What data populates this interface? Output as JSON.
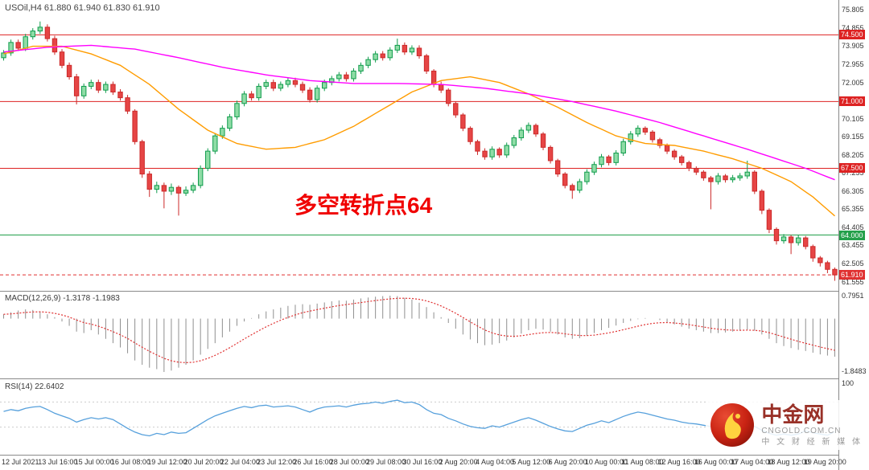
{
  "header": {
    "symbol_line": "USOil,H4 61.880 61.940 61.830 61.910"
  },
  "annotation": {
    "text": "多空转折点64",
    "color": "#f00000"
  },
  "price_axis": {
    "labels": [
      "75.805",
      "74.855",
      "73.905",
      "72.955",
      "72.005",
      "71.055",
      "70.105",
      "69.155",
      "68.205",
      "67.255",
      "66.305",
      "65.355",
      "64.405",
      "63.455",
      "62.505",
      "61.555"
    ]
  },
  "logo": {
    "title": "中金网",
    "domain": "CNGOLD.COM.CN",
    "tagline": "中 文 财 经 新 媒 体"
  },
  "chart_data": {
    "type": "candlestick",
    "symbol": "USOil",
    "timeframe": "H4",
    "price_range": [
      61.2,
      76.2
    ],
    "x_labels": [
      "12 Jul 2021",
      "13 Jul 16:00",
      "15 Jul 00:00",
      "16 Jul 08:00",
      "19 Jul 12:00",
      "20 Jul 20:00",
      "22 Jul 04:00",
      "23 Jul 12:00",
      "26 Jul 16:00",
      "28 Jul 00:00",
      "29 Jul 08:00",
      "30 Jul 16:00",
      "2 Aug 20:00",
      "4 Aug 04:00",
      "5 Aug 12:00",
      "6 Aug 20:00",
      "10 Aug 00:00",
      "11 Aug 08:00",
      "12 Aug 16:00",
      "16 Aug 00:00",
      "17 Aug 04:00",
      "18 Aug 12:00",
      "19 Aug 20:00"
    ],
    "colors": {
      "up_fill": "#8fdca6",
      "up_stroke": "#0f9c4c",
      "down_fill": "#e64545",
      "down_stroke": "#cc2a2a",
      "ma_fast": "#ff9c00",
      "ma_slow": "#ff00ff",
      "macd_bar": "#8f8f8f",
      "macd_signal": "#e03131",
      "rsi_line": "#56a0dc",
      "current_price": "#e03131"
    },
    "hlines": [
      {
        "value": 74.5,
        "label": "74.500",
        "color": "#dd2222"
      },
      {
        "value": 71.0,
        "label": "71.000",
        "color": "#dd2222"
      },
      {
        "value": 67.5,
        "label": "67.500",
        "color": "#dd2222"
      },
      {
        "value": 64.0,
        "label": "64.000",
        "color": "#23a04a"
      }
    ],
    "current_price": {
      "value": 61.91,
      "label": "61.910",
      "color": "#e03131"
    },
    "candles": [
      [
        73.3,
        73.7,
        73.15,
        73.55
      ],
      [
        73.55,
        74.25,
        73.4,
        74.1
      ],
      [
        74.1,
        74.25,
        73.65,
        73.8
      ],
      [
        73.8,
        74.55,
        73.65,
        74.4
      ],
      [
        74.4,
        74.85,
        74.25,
        74.7
      ],
      [
        74.7,
        75.2,
        74.55,
        74.9
      ],
      [
        74.9,
        75.05,
        74.15,
        74.3
      ],
      [
        74.3,
        74.45,
        73.45,
        73.6
      ],
      [
        73.6,
        73.75,
        72.75,
        72.9
      ],
      [
        72.9,
        73.05,
        72.15,
        72.3
      ],
      [
        72.3,
        72.45,
        70.85,
        71.3
      ],
      [
        71.3,
        71.95,
        71.15,
        71.8
      ],
      [
        71.8,
        72.15,
        71.65,
        72.0
      ],
      [
        72.0,
        72.15,
        71.45,
        71.6
      ],
      [
        71.6,
        72.05,
        71.45,
        71.9
      ],
      [
        71.9,
        72.05,
        71.35,
        71.5
      ],
      [
        71.5,
        71.65,
        71.05,
        71.2
      ],
      [
        71.2,
        71.35,
        70.35,
        70.5
      ],
      [
        70.5,
        70.6,
        68.75,
        68.9
      ],
      [
        68.9,
        69.0,
        67.0,
        67.2
      ],
      [
        67.2,
        67.35,
        66.0,
        66.4
      ],
      [
        66.4,
        66.8,
        66.2,
        66.6
      ],
      [
        66.6,
        66.75,
        65.4,
        66.3
      ],
      [
        66.3,
        66.7,
        66.1,
        66.5
      ],
      [
        66.5,
        66.6,
        65.02,
        66.2
      ],
      [
        66.2,
        66.55,
        66.05,
        66.35
      ],
      [
        66.35,
        66.75,
        66.2,
        66.6
      ],
      [
        66.6,
        67.65,
        66.45,
        67.5
      ],
      [
        67.5,
        68.55,
        67.35,
        68.4
      ],
      [
        68.4,
        69.35,
        68.25,
        69.2
      ],
      [
        69.2,
        69.75,
        69.05,
        69.6
      ],
      [
        69.6,
        70.35,
        69.45,
        70.2
      ],
      [
        70.2,
        71.05,
        70.05,
        70.9
      ],
      [
        70.9,
        71.55,
        70.75,
        71.4
      ],
      [
        71.4,
        71.55,
        71.05,
        71.2
      ],
      [
        71.2,
        71.95,
        71.05,
        71.8
      ],
      [
        71.8,
        72.15,
        71.65,
        72.0
      ],
      [
        72.0,
        72.15,
        71.55,
        71.7
      ],
      [
        71.7,
        72.05,
        71.55,
        71.9
      ],
      [
        71.9,
        72.25,
        71.75,
        72.1
      ],
      [
        72.1,
        72.25,
        71.75,
        71.9
      ],
      [
        71.9,
        72.05,
        71.45,
        71.6
      ],
      [
        71.6,
        71.75,
        70.95,
        71.1
      ],
      [
        71.1,
        71.85,
        70.95,
        71.7
      ],
      [
        71.7,
        72.15,
        71.55,
        72.0
      ],
      [
        72.0,
        72.35,
        71.85,
        72.2
      ],
      [
        72.2,
        72.55,
        72.05,
        72.4
      ],
      [
        72.4,
        72.55,
        72.05,
        72.2
      ],
      [
        72.2,
        72.75,
        72.05,
        72.6
      ],
      [
        72.6,
        73.05,
        72.45,
        72.9
      ],
      [
        72.9,
        73.35,
        72.75,
        73.2
      ],
      [
        73.2,
        73.65,
        73.05,
        73.5
      ],
      [
        73.5,
        73.65,
        73.15,
        73.3
      ],
      [
        73.3,
        73.85,
        73.15,
        73.7
      ],
      [
        73.7,
        74.3,
        73.55,
        73.95
      ],
      [
        73.95,
        74.1,
        73.45,
        73.6
      ],
      [
        73.6,
        73.95,
        73.45,
        73.8
      ],
      [
        73.8,
        73.95,
        73.25,
        73.4
      ],
      [
        73.4,
        73.5,
        72.45,
        72.6
      ],
      [
        72.6,
        72.7,
        71.75,
        71.9
      ],
      [
        71.9,
        72.05,
        71.45,
        71.6
      ],
      [
        71.6,
        71.7,
        70.75,
        70.9
      ],
      [
        70.9,
        71.0,
        70.15,
        70.3
      ],
      [
        70.3,
        70.4,
        69.45,
        69.6
      ],
      [
        69.6,
        69.7,
        68.75,
        68.9
      ],
      [
        68.9,
        69.0,
        68.2,
        68.4
      ],
      [
        68.4,
        68.55,
        67.95,
        68.1
      ],
      [
        68.1,
        68.65,
        67.95,
        68.5
      ],
      [
        68.5,
        68.6,
        68.05,
        68.2
      ],
      [
        68.2,
        68.85,
        68.05,
        68.7
      ],
      [
        68.7,
        69.25,
        68.55,
        69.1
      ],
      [
        69.1,
        69.65,
        68.95,
        69.5
      ],
      [
        69.5,
        69.9,
        69.35,
        69.75
      ],
      [
        69.75,
        69.85,
        69.15,
        69.3
      ],
      [
        69.3,
        69.4,
        68.45,
        68.6
      ],
      [
        68.6,
        68.7,
        67.75,
        67.9
      ],
      [
        67.9,
        68.0,
        67.05,
        67.2
      ],
      [
        67.2,
        67.3,
        66.45,
        66.6
      ],
      [
        66.6,
        66.7,
        65.9,
        66.35
      ],
      [
        66.35,
        66.95,
        66.2,
        66.8
      ],
      [
        66.8,
        67.45,
        66.65,
        67.3
      ],
      [
        67.3,
        67.85,
        67.15,
        67.7
      ],
      [
        67.7,
        68.25,
        67.55,
        68.1
      ],
      [
        68.1,
        68.2,
        67.65,
        67.8
      ],
      [
        67.8,
        68.45,
        67.65,
        68.3
      ],
      [
        68.3,
        69.05,
        68.15,
        68.9
      ],
      [
        68.9,
        69.45,
        68.75,
        69.3
      ],
      [
        69.3,
        69.75,
        69.15,
        69.6
      ],
      [
        69.6,
        69.7,
        69.25,
        69.4
      ],
      [
        69.4,
        69.5,
        68.85,
        69.0
      ],
      [
        69.0,
        69.1,
        68.55,
        68.7
      ],
      [
        68.7,
        68.8,
        68.25,
        68.4
      ],
      [
        68.4,
        68.5,
        67.95,
        68.1
      ],
      [
        68.1,
        68.2,
        67.65,
        67.8
      ],
      [
        67.8,
        67.9,
        67.35,
        67.5
      ],
      [
        67.5,
        67.6,
        67.15,
        67.3
      ],
      [
        67.3,
        67.4,
        66.85,
        67.0
      ],
      [
        67.0,
        67.1,
        65.35,
        66.8
      ],
      [
        66.8,
        67.25,
        66.65,
        67.1
      ],
      [
        67.1,
        67.2,
        66.75,
        66.9
      ],
      [
        66.9,
        67.15,
        66.75,
        67.0
      ],
      [
        67.0,
        67.25,
        66.85,
        67.1
      ],
      [
        67.1,
        67.9,
        66.95,
        67.3
      ],
      [
        67.3,
        67.4,
        66.15,
        66.3
      ],
      [
        66.3,
        66.4,
        65.1,
        65.3
      ],
      [
        65.3,
        65.4,
        64.1,
        64.3
      ],
      [
        64.3,
        64.4,
        63.5,
        63.7
      ],
      [
        63.7,
        64.05,
        63.55,
        63.9
      ],
      [
        63.9,
        64.0,
        63.0,
        63.6
      ],
      [
        63.6,
        64.0,
        63.45,
        63.85
      ],
      [
        63.85,
        63.95,
        63.25,
        63.4
      ],
      [
        63.4,
        63.5,
        62.6,
        62.8
      ],
      [
        62.8,
        62.9,
        62.35,
        62.55
      ],
      [
        62.55,
        62.65,
        62.0,
        62.2
      ],
      [
        62.2,
        62.3,
        61.6,
        61.91
      ]
    ],
    "ma_fast": {
      "name": "MA fast (orange)",
      "points": [
        [
          0,
          73.5
        ],
        [
          4,
          73.9
        ],
        [
          8,
          73.9
        ],
        [
          12,
          73.5
        ],
        [
          16,
          72.9
        ],
        [
          20,
          71.9
        ],
        [
          24,
          70.6
        ],
        [
          28,
          69.5
        ],
        [
          32,
          68.8
        ],
        [
          36,
          68.5
        ],
        [
          40,
          68.6
        ],
        [
          44,
          69.0
        ],
        [
          48,
          69.7
        ],
        [
          52,
          70.6
        ],
        [
          56,
          71.5
        ],
        [
          60,
          72.1
        ],
        [
          64,
          72.3
        ],
        [
          68,
          72.0
        ],
        [
          72,
          71.4
        ],
        [
          76,
          70.7
        ],
        [
          80,
          69.9
        ],
        [
          84,
          69.2
        ],
        [
          88,
          68.8
        ],
        [
          92,
          68.7
        ],
        [
          96,
          68.4
        ],
        [
          100,
          68.0
        ],
        [
          104,
          67.5
        ],
        [
          108,
          66.8
        ],
        [
          111,
          66.0
        ],
        [
          114,
          65.0
        ]
      ]
    },
    "ma_slow": {
      "name": "MA slow (magenta)",
      "points": [
        [
          0,
          73.6
        ],
        [
          6,
          73.85
        ],
        [
          12,
          73.95
        ],
        [
          18,
          73.75
        ],
        [
          24,
          73.3
        ],
        [
          30,
          72.8
        ],
        [
          36,
          72.4
        ],
        [
          42,
          72.1
        ],
        [
          48,
          71.95
        ],
        [
          54,
          71.95
        ],
        [
          60,
          71.9
        ],
        [
          66,
          71.7
        ],
        [
          72,
          71.4
        ],
        [
          78,
          71.0
        ],
        [
          84,
          70.5
        ],
        [
          90,
          69.9
        ],
        [
          96,
          69.2
        ],
        [
          102,
          68.5
        ],
        [
          106,
          68.0
        ],
        [
          110,
          67.5
        ],
        [
          114,
          66.9
        ]
      ]
    },
    "macd": {
      "label": "MACD(12,26,9) -1.3178 -1.1983",
      "current_macd": -1.3178,
      "current_signal": -1.1983,
      "max": 0.7951,
      "min": -1.8483,
      "axis_labels": [
        "0.7951",
        "-1.8483"
      ],
      "values": [
        0.15,
        0.22,
        0.28,
        0.32,
        0.3,
        0.25,
        0.15,
        0.05,
        -0.1,
        -0.25,
        -0.45,
        -0.5,
        -0.4,
        -0.55,
        -0.7,
        -0.85,
        -1.0,
        -1.2,
        -1.45,
        -1.6,
        -1.7,
        -1.75,
        -1.8483,
        -1.8,
        -1.7,
        -1.6,
        -1.45,
        -1.25,
        -1.05,
        -0.85,
        -0.65,
        -0.45,
        -0.25,
        -0.1,
        0.02,
        0.15,
        0.25,
        0.32,
        0.38,
        0.44,
        0.48,
        0.5,
        0.48,
        0.52,
        0.56,
        0.6,
        0.63,
        0.62,
        0.66,
        0.7,
        0.73,
        0.76,
        0.78,
        0.7951,
        0.78,
        0.72,
        0.66,
        0.55,
        0.4,
        0.22,
        0.05,
        -0.15,
        -0.35,
        -0.55,
        -0.72,
        -0.85,
        -0.92,
        -0.9,
        -0.85,
        -0.76,
        -0.65,
        -0.52,
        -0.4,
        -0.35,
        -0.38,
        -0.45,
        -0.55,
        -0.65,
        -0.7,
        -0.68,
        -0.6,
        -0.5,
        -0.4,
        -0.32,
        -0.24,
        -0.15,
        -0.08,
        -0.02,
        0.02,
        0.0,
        -0.05,
        -0.12,
        -0.2,
        -0.28,
        -0.35,
        -0.4,
        -0.45,
        -0.5,
        -0.5,
        -0.48,
        -0.45,
        -0.42,
        -0.38,
        -0.42,
        -0.55,
        -0.7,
        -0.85,
        -0.95,
        -1.02,
        -1.08,
        -1.12,
        -1.18,
        -1.24,
        -1.28,
        -1.3178
      ]
    },
    "rsi": {
      "label": "RSI(14) 22.6402",
      "current": 22.6402,
      "range": [
        0,
        100
      ],
      "levels": [
        30,
        70
      ],
      "axis_labels": [
        "100"
      ],
      "values": [
        55,
        58,
        56,
        60,
        62,
        63,
        58,
        52,
        48,
        44,
        38,
        42,
        45,
        43,
        45,
        42,
        35,
        28,
        22,
        18,
        16,
        20,
        18,
        22,
        20,
        21,
        28,
        35,
        42,
        48,
        52,
        56,
        60,
        63,
        61,
        64,
        65,
        62,
        63,
        64,
        62,
        58,
        54,
        59,
        62,
        63,
        64,
        62,
        65,
        67,
        68,
        70,
        68,
        71,
        73,
        69,
        70,
        66,
        58,
        52,
        50,
        44,
        40,
        35,
        31,
        29,
        28,
        32,
        30,
        34,
        38,
        42,
        45,
        41,
        36,
        31,
        27,
        24,
        23,
        28,
        33,
        36,
        40,
        37,
        42,
        47,
        51,
        54,
        52,
        49,
        46,
        43,
        41,
        38,
        36,
        35,
        33,
        31,
        34,
        32,
        33,
        35,
        37,
        31,
        25,
        20,
        17,
        19,
        17,
        19,
        24,
        21,
        19,
        17,
        22.64
      ]
    }
  }
}
